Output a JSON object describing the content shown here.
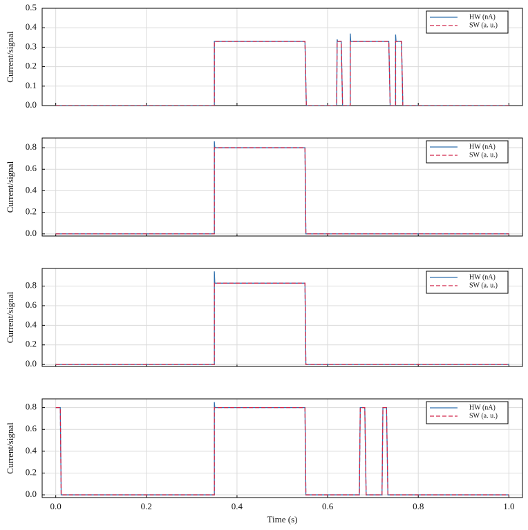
{
  "chart_data": [
    {
      "type": "line",
      "ylabel": "Current/signal",
      "x": [
        0,
        0.35,
        0.35,
        0.351,
        0.55,
        0.553,
        0.62,
        0.621,
        0.622,
        0.63,
        0.633,
        0.65,
        0.65,
        0.651,
        0.735,
        0.738,
        0.75,
        0.75,
        0.751,
        0.763,
        0.766,
        1.0
      ],
      "series": [
        {
          "name": "HW (nA)",
          "color": "#2f6fad",
          "dash": false,
          "values": [
            0,
            0,
            0.33,
            0.33,
            0.33,
            0,
            0,
            0.34,
            0.33,
            0.33,
            0,
            0,
            0.37,
            0.33,
            0.33,
            0,
            0,
            0.365,
            0.33,
            0.33,
            0,
            0
          ]
        },
        {
          "name": "SW (a. u.)",
          "color": "#d0264a",
          "dash": true,
          "values": [
            0,
            0,
            0.33,
            0.33,
            0.33,
            0,
            0,
            0.33,
            0.33,
            0.33,
            0,
            0,
            0.33,
            0.33,
            0.33,
            0,
            0,
            0.33,
            0.33,
            0.33,
            0,
            0
          ]
        }
      ],
      "xlim": [
        -0.03,
        1.03
      ],
      "xticks": [
        0,
        0.2,
        0.4,
        0.6,
        0.8,
        1.0
      ],
      "ylim": [
        0,
        0.5
      ],
      "yticks": [
        {
          "value": 0,
          "label": "0.0"
        },
        0.1,
        0.2,
        0.3,
        0.4,
        0.5
      ],
      "grid": true,
      "legend": "top-right"
    },
    {
      "type": "line",
      "ylabel": "Current/signal",
      "x": [
        0,
        0.35,
        0.35,
        0.351,
        0.55,
        0.552,
        1.0
      ],
      "series": [
        {
          "name": "HW (nA)",
          "color": "#2f6fad",
          "dash": false,
          "values": [
            0,
            0,
            0.86,
            0.8,
            0.8,
            0,
            0
          ]
        },
        {
          "name": "SW (a. u.)",
          "color": "#d0264a",
          "dash": true,
          "values": [
            0,
            0,
            0.8,
            0.8,
            0.8,
            0,
            0
          ]
        }
      ],
      "xlim": [
        -0.03,
        1.03
      ],
      "xticks": [
        0,
        0.2,
        0.4,
        0.6,
        0.8,
        1.0
      ],
      "ylim": [
        -0.02,
        0.89
      ],
      "yticks": [
        {
          "value": 0,
          "label": "0.0"
        },
        0.2,
        0.4,
        0.6,
        0.8
      ],
      "grid": true,
      "legend": "top-right"
    },
    {
      "type": "line",
      "ylabel": "Current/signal",
      "x": [
        0,
        0.35,
        0.35,
        0.351,
        0.55,
        0.552,
        1.0
      ],
      "series": [
        {
          "name": "HW (nA)",
          "color": "#2f6fad",
          "dash": false,
          "values": [
            0,
            0,
            0.95,
            0.83,
            0.83,
            0,
            0
          ]
        },
        {
          "name": "SW (a. u.)",
          "color": "#d0264a",
          "dash": true,
          "values": [
            0,
            0,
            0.83,
            0.83,
            0.83,
            0,
            0
          ]
        }
      ],
      "xlim": [
        -0.03,
        1.03
      ],
      "xticks": [
        0,
        0.2,
        0.4,
        0.6,
        0.8,
        1.0
      ],
      "ylim": [
        -0.02,
        0.98
      ],
      "yticks": [
        {
          "value": 0,
          "label": "0.0"
        },
        0.2,
        0.4,
        0.6,
        0.8
      ],
      "grid": true,
      "legend": "top-right"
    },
    {
      "type": "line",
      "ylabel": "Current/signal",
      "xlabel": "Time (s)",
      "x": [
        0,
        0.01,
        0.012,
        0.35,
        0.35,
        0.351,
        0.55,
        0.552,
        0.67,
        0.672,
        0.682,
        0.685,
        0.72,
        0.722,
        0.73,
        0.733,
        1.0
      ],
      "series": [
        {
          "name": "HW (nA)",
          "color": "#2f6fad",
          "dash": false,
          "values": [
            0.8,
            0.8,
            0,
            0,
            0.85,
            0.8,
            0.8,
            0,
            0,
            0.8,
            0.8,
            0,
            0,
            0.8,
            0.8,
            0,
            0
          ]
        },
        {
          "name": "SW (a. u.)",
          "color": "#d0264a",
          "dash": true,
          "values": [
            0.8,
            0.8,
            0,
            0,
            0.8,
            0.8,
            0.8,
            0,
            0,
            0.8,
            0.8,
            0,
            0,
            0.8,
            0.8,
            0,
            0
          ]
        }
      ],
      "xlim": [
        -0.03,
        1.03
      ],
      "xticks": [
        {
          "value": 0,
          "label": "0.0"
        },
        0.2,
        0.4,
        0.6,
        0.8,
        {
          "value": 1.0,
          "label": "1.0"
        }
      ],
      "ylim": [
        -0.025,
        0.88
      ],
      "yticks": [
        {
          "value": 0,
          "label": "0.0"
        },
        0.2,
        0.4,
        0.6,
        0.8
      ],
      "grid": true,
      "legend": "top-right"
    }
  ]
}
